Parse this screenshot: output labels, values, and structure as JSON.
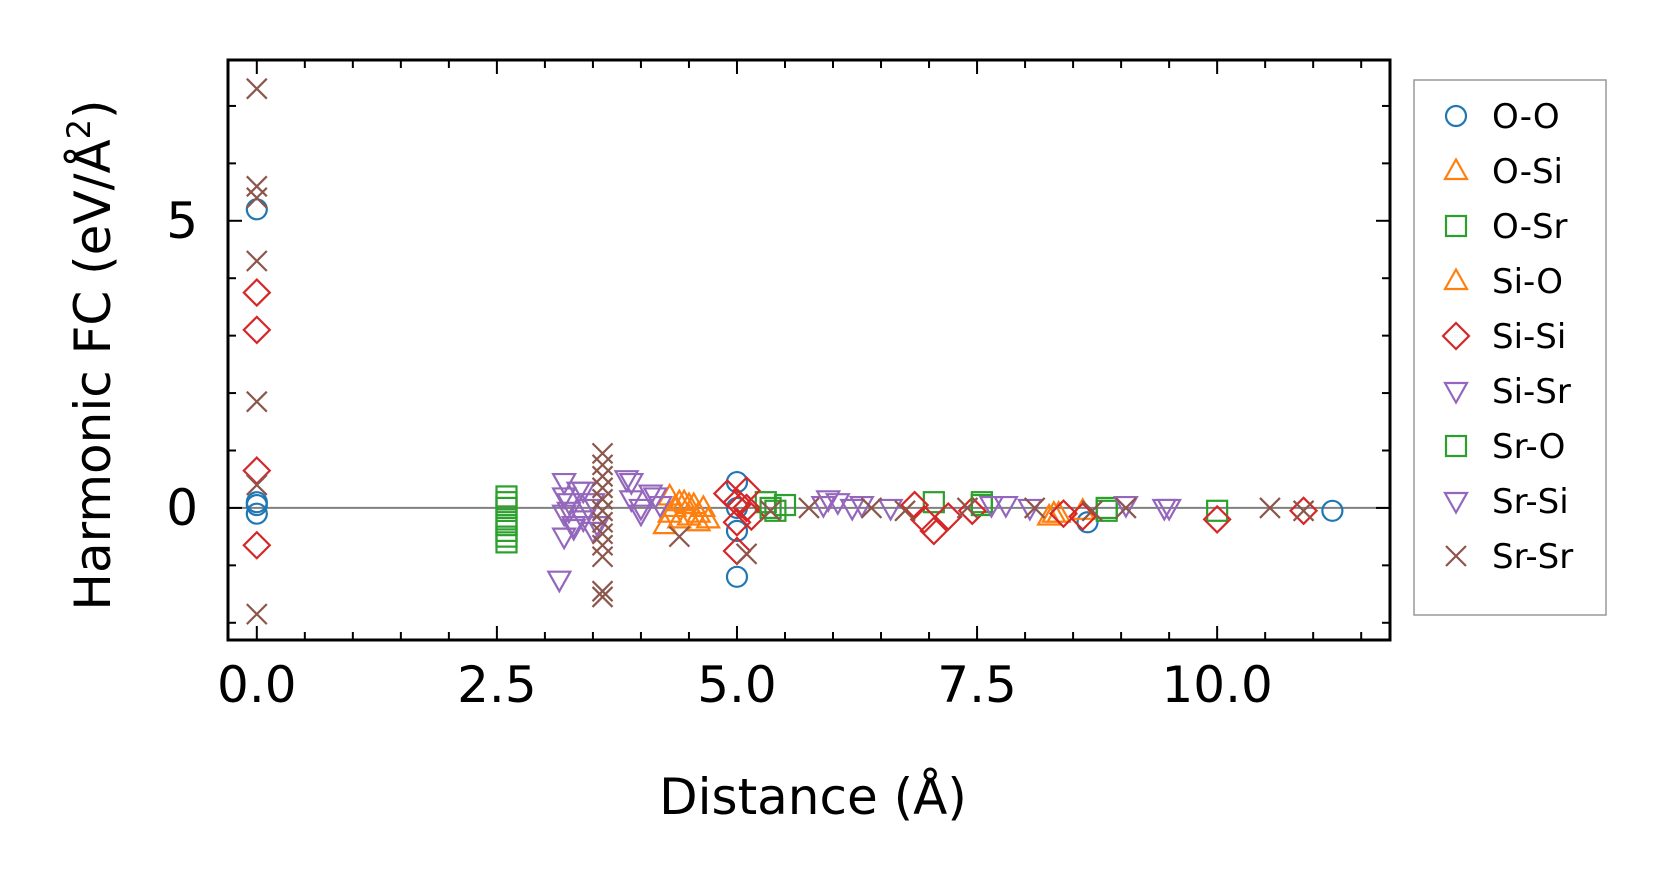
{
  "chart_data": {
    "type": "scatter",
    "title": "",
    "xlabel": "Distance (Å)",
    "ylabel_main": "Harmonic FC (eV/Å",
    "ylabel_sup": "2",
    "ylabel_close": ")",
    "xlim": [
      -0.3,
      11.8
    ],
    "ylim": [
      -2.3,
      7.8
    ],
    "xticks": [
      {
        "value": 0.0,
        "label": "0.0"
      },
      {
        "value": 2.5,
        "label": "2.5"
      },
      {
        "value": 5.0,
        "label": "5.0"
      },
      {
        "value": 7.5,
        "label": "7.5"
      },
      {
        "value": 10.0,
        "label": "10.0"
      }
    ],
    "yticks": [
      {
        "value": 0,
        "label": "0"
      },
      {
        "value": 5,
        "label": "5"
      }
    ],
    "zero_line": true,
    "grid": false,
    "legend_position": "outside-right",
    "series": [
      {
        "name": "O-O",
        "marker": "circle",
        "color": "#1f77b4",
        "points": [
          [
            0,
            5.2
          ],
          [
            0,
            0.1
          ],
          [
            0,
            -0.1
          ],
          [
            0,
            0.05
          ],
          [
            5.0,
            0.45
          ],
          [
            5.0,
            -1.2
          ],
          [
            5.0,
            0.0
          ],
          [
            5.0,
            -0.4
          ],
          [
            8.65,
            -0.25
          ],
          [
            11.2,
            -0.05
          ]
        ]
      },
      {
        "name": "O-Si",
        "marker": "triangle-up",
        "color": "#ff7f0e",
        "points": [
          [
            4.25,
            -0.3
          ],
          [
            4.3,
            0.2
          ],
          [
            4.35,
            0.0
          ],
          [
            4.4,
            -0.2
          ],
          [
            4.45,
            0.1
          ],
          [
            4.5,
            -0.15
          ],
          [
            4.55,
            0.05
          ],
          [
            4.6,
            -0.1
          ],
          [
            4.65,
            0.0
          ],
          [
            4.7,
            -0.2
          ],
          [
            8.25,
            -0.15
          ],
          [
            8.35,
            -0.1
          ]
        ]
      },
      {
        "name": "O-Sr",
        "marker": "square",
        "color": "#2ca02c",
        "points": [
          [
            2.6,
            0.2
          ],
          [
            2.6,
            0.0
          ],
          [
            2.6,
            -0.2
          ],
          [
            2.6,
            -0.4
          ],
          [
            2.6,
            -0.6
          ],
          [
            5.3,
            0.1
          ],
          [
            5.4,
            -0.05
          ],
          [
            5.5,
            0.05
          ],
          [
            7.05,
            0.1
          ],
          [
            7.55,
            0.1
          ],
          [
            8.85,
            -0.05
          ],
          [
            10.0,
            -0.05
          ]
        ]
      },
      {
        "name": "Si-O",
        "marker": "triangle-up",
        "color": "#ff7f0e",
        "points": [
          [
            4.3,
            -0.1
          ],
          [
            4.4,
            0.1
          ],
          [
            4.5,
            0.05
          ],
          [
            4.6,
            -0.25
          ],
          [
            8.3,
            -0.1
          ],
          [
            8.6,
            -0.05
          ]
        ]
      },
      {
        "name": "Si-Si",
        "marker": "diamond",
        "color": "#d62728",
        "points": [
          [
            0,
            3.75
          ],
          [
            0,
            3.1
          ],
          [
            0,
            0.65
          ],
          [
            0,
            -0.65
          ],
          [
            4.9,
            0.25
          ],
          [
            5.0,
            0.1
          ],
          [
            5.0,
            -0.25
          ],
          [
            5.0,
            -0.75
          ],
          [
            5.1,
            0.3
          ],
          [
            5.1,
            0.0
          ],
          [
            5.15,
            -0.15
          ],
          [
            6.85,
            0.05
          ],
          [
            6.95,
            -0.2
          ],
          [
            7.05,
            -0.4
          ],
          [
            7.2,
            -0.15
          ],
          [
            7.45,
            -0.05
          ],
          [
            8.4,
            -0.1
          ],
          [
            8.6,
            -0.15
          ],
          [
            10.0,
            -0.2
          ],
          [
            10.9,
            -0.05
          ]
        ]
      },
      {
        "name": "Si-Sr",
        "marker": "triangle-down",
        "color": "#9467bd",
        "points": [
          [
            3.2,
            0.45
          ],
          [
            3.2,
            -0.1
          ],
          [
            3.2,
            -0.5
          ],
          [
            3.25,
            0.1
          ],
          [
            3.3,
            -0.3
          ],
          [
            3.35,
            0.3
          ],
          [
            3.4,
            -0.2
          ],
          [
            3.45,
            0.0
          ],
          [
            3.5,
            -0.4
          ],
          [
            3.85,
            0.5
          ],
          [
            3.9,
            0.15
          ],
          [
            4.0,
            -0.1
          ],
          [
            4.1,
            0.25
          ],
          [
            4.2,
            0.05
          ],
          [
            5.95,
            0.15
          ],
          [
            6.05,
            0.1
          ],
          [
            6.3,
            0.05
          ],
          [
            7.8,
            0.05
          ],
          [
            8.05,
            0.0
          ],
          [
            9.45,
            0.0
          ]
        ]
      },
      {
        "name": "Sr-O",
        "marker": "square",
        "color": "#2ca02c",
        "points": [
          [
            2.6,
            0.1
          ],
          [
            2.6,
            -0.3
          ],
          [
            2.6,
            -0.5
          ],
          [
            5.35,
            0.0
          ],
          [
            7.55,
            0.05
          ],
          [
            8.85,
            0.0
          ]
        ]
      },
      {
        "name": "Sr-Si",
        "marker": "triangle-down",
        "color": "#9467bd",
        "points": [
          [
            3.15,
            -1.25
          ],
          [
            3.2,
            0.2
          ],
          [
            3.25,
            -0.05
          ],
          [
            3.3,
            -0.35
          ],
          [
            3.4,
            0.3
          ],
          [
            3.5,
            0.1
          ],
          [
            3.55,
            -0.3
          ],
          [
            3.9,
            0.45
          ],
          [
            4.0,
            0.0
          ],
          [
            4.15,
            0.2
          ],
          [
            5.9,
            0.05
          ],
          [
            6.2,
            0.0
          ],
          [
            6.6,
            0.0
          ],
          [
            7.65,
            0.05
          ],
          [
            9.05,
            0.05
          ],
          [
            9.5,
            0.0
          ]
        ]
      },
      {
        "name": "Sr-Sr",
        "marker": "x",
        "color": "#8c564b",
        "points": [
          [
            0,
            7.3
          ],
          [
            0,
            5.6
          ],
          [
            0,
            5.4
          ],
          [
            0,
            4.3
          ],
          [
            0,
            1.85
          ],
          [
            0,
            0.4
          ],
          [
            0,
            -1.85
          ],
          [
            3.6,
            0.95
          ],
          [
            3.6,
            0.75
          ],
          [
            3.6,
            0.55
          ],
          [
            3.6,
            0.35
          ],
          [
            3.6,
            0.15
          ],
          [
            3.6,
            -0.05
          ],
          [
            3.6,
            -0.25
          ],
          [
            3.6,
            -0.45
          ],
          [
            3.6,
            -0.65
          ],
          [
            3.6,
            -0.85
          ],
          [
            3.6,
            -1.45
          ],
          [
            3.6,
            -1.55
          ],
          [
            4.4,
            -0.5
          ],
          [
            5.1,
            -0.8
          ],
          [
            5.35,
            -0.05
          ],
          [
            5.75,
            0.0
          ],
          [
            6.4,
            0.0
          ],
          [
            6.75,
            -0.05
          ],
          [
            7.4,
            0.0
          ],
          [
            8.1,
            0.0
          ],
          [
            8.7,
            -0.05
          ],
          [
            9.05,
            0.0
          ],
          [
            10.55,
            0.0
          ],
          [
            10.9,
            -0.05
          ]
        ]
      }
    ]
  }
}
